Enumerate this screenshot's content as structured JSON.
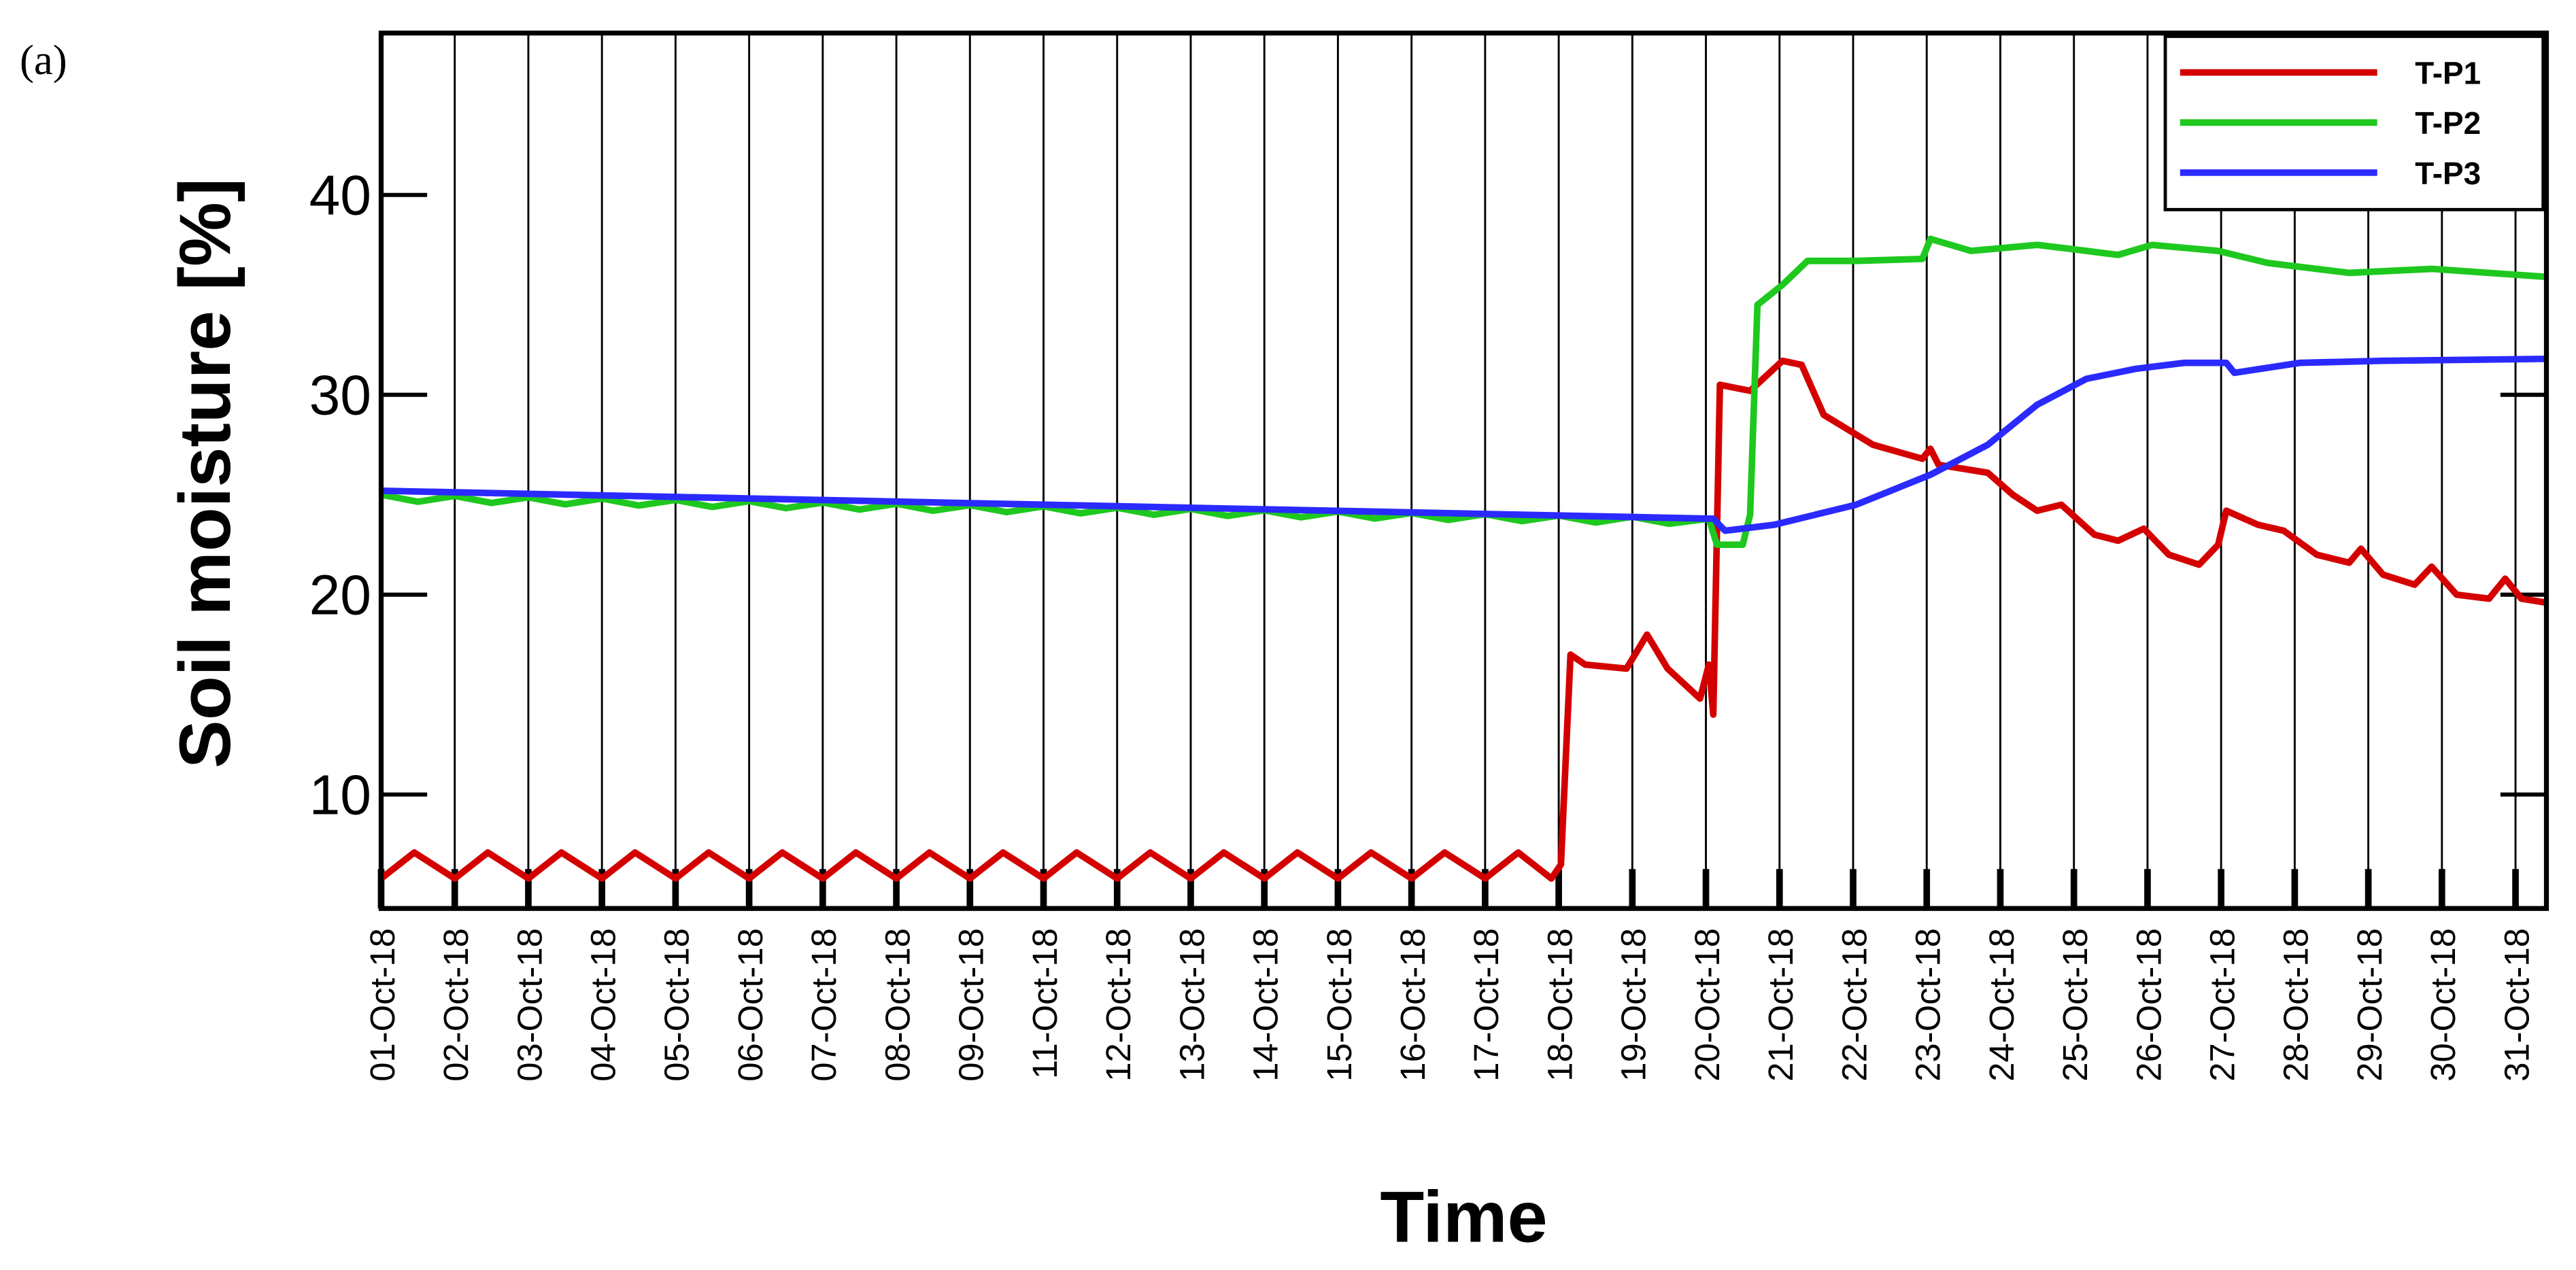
{
  "panel_label": "(a)",
  "chart_data": {
    "type": "line",
    "y_label": "Soil moisture [%]",
    "x_label": "Time",
    "xlim": [
      0,
      29.42
    ],
    "xticks": [
      {
        "value": 0,
        "label": "01-Oct-18"
      },
      {
        "value": 1,
        "label": "02-Oct-18"
      },
      {
        "value": 2,
        "label": "03-Oct-18"
      },
      {
        "value": 3,
        "label": "04-Oct-18"
      },
      {
        "value": 4,
        "label": "05-Oct-18"
      },
      {
        "value": 5,
        "label": "06-Oct-18"
      },
      {
        "value": 6,
        "label": "07-Oct-18"
      },
      {
        "value": 7,
        "label": "08-Oct-18"
      },
      {
        "value": 8,
        "label": "09-Oct-18"
      },
      {
        "value": 9,
        "label": "11-Oct-18"
      },
      {
        "value": 10,
        "label": "12-Oct-18"
      },
      {
        "value": 11,
        "label": "13-Oct-18"
      },
      {
        "value": 12,
        "label": "14-Oct-18"
      },
      {
        "value": 13,
        "label": "15-Oct-18"
      },
      {
        "value": 14,
        "label": "16-Oct-18"
      },
      {
        "value": 15,
        "label": "17-Oct-18"
      },
      {
        "value": 16,
        "label": "18-Oct-18"
      },
      {
        "value": 17,
        "label": "19-Oct-18"
      },
      {
        "value": 18,
        "label": "20-Oct-18"
      },
      {
        "value": 19,
        "label": "21-Oct-18"
      },
      {
        "value": 20,
        "label": "22-Oct-18"
      },
      {
        "value": 21,
        "label": "23-Oct-18"
      },
      {
        "value": 22,
        "label": "24-Oct-18"
      },
      {
        "value": 23,
        "label": "25-Oct-18"
      },
      {
        "value": 24,
        "label": "26-Oct-18"
      },
      {
        "value": 25,
        "label": "27-Oct-18"
      },
      {
        "value": 26,
        "label": "28-Oct-18"
      },
      {
        "value": 27,
        "label": "29-Oct-18"
      },
      {
        "value": 28,
        "label": "30-Oct-18"
      },
      {
        "value": 29,
        "label": "31-Oct-18"
      }
    ],
    "ylim": [
      4.3,
      48.1
    ],
    "yticks": [
      10,
      20,
      30,
      40
    ],
    "grid": "x",
    "legend": "upper right",
    "series": [
      {
        "name": "T-P1",
        "color": "#d40000",
        "x": [
          0,
          0.45,
          1,
          1.45,
          2,
          2.45,
          3,
          3.45,
          4,
          4.45,
          5,
          5.45,
          6,
          6.45,
          7,
          7.45,
          8,
          8.45,
          9,
          9.45,
          10,
          10.45,
          11,
          11.45,
          12,
          12.45,
          13,
          13.45,
          14,
          14.45,
          15,
          15.45,
          15.9,
          16.03,
          16.16,
          16.36,
          16.92,
          17.2,
          17.48,
          17.92,
          18.04,
          18.1,
          18.19,
          18.6,
          19.04,
          19.3,
          19.6,
          20.27,
          20.94,
          21.05,
          21.16,
          21.83,
          22.17,
          22.5,
          22.83,
          23.28,
          23.6,
          23.95,
          24.29,
          24.7,
          24.96,
          25.07,
          25.5,
          25.85,
          26.3,
          26.74,
          26.9,
          27.2,
          27.63,
          27.86,
          28.2,
          28.64,
          28.86,
          29.08,
          29.42
        ],
        "values": [
          5.8,
          7.1,
          5.8,
          7.1,
          5.8,
          7.1,
          5.8,
          7.1,
          5.8,
          7.1,
          5.8,
          7.1,
          5.8,
          7.1,
          5.8,
          7.1,
          5.8,
          7.1,
          5.8,
          7.1,
          5.8,
          7.1,
          5.8,
          7.1,
          5.8,
          7.1,
          5.8,
          7.1,
          5.8,
          7.1,
          5.8,
          7.1,
          5.8,
          6.5,
          17.0,
          16.5,
          16.3,
          18,
          16.3,
          14.8,
          16.5,
          14,
          30.5,
          30.2,
          31.7,
          31.5,
          29,
          27.5,
          26.8,
          27.3,
          26.5,
          26.1,
          25,
          24.2,
          24.5,
          23,
          22.7,
          23.3,
          22,
          21.5,
          22.5,
          24.2,
          23.5,
          23.2,
          22,
          21.6,
          22.3,
          21,
          20.5,
          21.4,
          20,
          19.8,
          20.8,
          19.8,
          19.6
        ]
      },
      {
        "name": "T-P2",
        "color": "#1ec81e",
        "x": [
          0,
          0.5,
          1,
          1.5,
          2,
          2.5,
          3,
          3.5,
          4,
          4.5,
          5,
          5.5,
          6,
          6.5,
          7,
          7.5,
          8,
          8.5,
          9,
          9.5,
          10,
          10.5,
          11,
          11.5,
          12,
          12.5,
          13,
          13.5,
          14,
          14.5,
          15,
          15.5,
          16,
          16.5,
          17,
          17.5,
          18.04,
          18.15,
          18.5,
          18.6,
          18.7,
          19.04,
          19.38,
          20.04,
          20.94,
          21.05,
          21.6,
          22.5,
          22.95,
          23.6,
          24.06,
          24.96,
          25.63,
          26.74,
          27.86,
          29.42
        ],
        "values": [
          25.0,
          24.65,
          24.94,
          24.59,
          24.87,
          24.52,
          24.81,
          24.46,
          24.74,
          24.39,
          24.68,
          24.33,
          24.61,
          24.26,
          24.55,
          24.2,
          24.48,
          24.13,
          24.42,
          24.07,
          24.35,
          24.0,
          24.29,
          23.94,
          24.22,
          23.87,
          24.16,
          23.81,
          24.09,
          23.74,
          24.03,
          23.68,
          23.96,
          23.61,
          23.9,
          23.55,
          23.8,
          22.5,
          22.5,
          24,
          34.5,
          35.5,
          36.7,
          36.7,
          36.8,
          37.8,
          37.2,
          37.5,
          37.3,
          37,
          37.5,
          37.2,
          36.6,
          36.1,
          36.3,
          35.9
        ]
      },
      {
        "name": "T-P3",
        "color": "#2a2aff",
        "x": [
          0,
          18.1,
          18.26,
          18.93,
          20.04,
          21.05,
          21.83,
          22.5,
          23.17,
          23.84,
          24.5,
          25.07,
          25.18,
          26.07,
          27.2,
          29.42
        ],
        "values": [
          25.2,
          23.8,
          23.2,
          23.5,
          24.5,
          26,
          27.5,
          29.5,
          30.8,
          31.3,
          31.6,
          31.6,
          31.1,
          31.6,
          31.7,
          31.8
        ]
      }
    ]
  }
}
